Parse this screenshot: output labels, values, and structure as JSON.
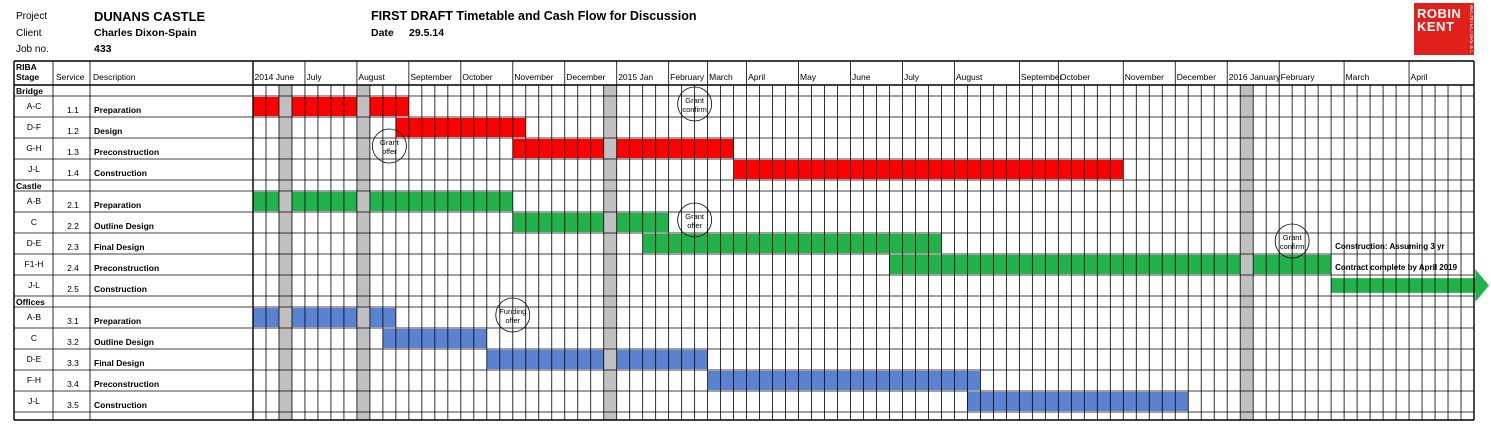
{
  "header": {
    "project_label": "Project",
    "project_value": "DUNANS CASTLE",
    "client_label": "Client",
    "client_value": "Charles Dixon-Spain",
    "job_label": "Job no.",
    "job_value": "433",
    "title": "FIRST DRAFT Timetable and Cash Flow for Discussion",
    "date_label": "Date",
    "date_value": "29.5.14"
  },
  "logo": {
    "line1": "ROBIN",
    "line2": "KENT",
    "vertical": "ARCHITECTURE & CONSERVATION",
    "color": "#e0201b"
  },
  "columns": {
    "riba": "RIBA",
    "stage": "Stage",
    "service": "Service",
    "description": "Description"
  },
  "chart_data": {
    "type": "gantt",
    "time_unit": "week",
    "start": "2014-06-02",
    "colors": {
      "Bridge": "#ff0000",
      "Castle": "#22b24c",
      "Offices": "#5b82d1",
      "grey": "#c0c0c0"
    },
    "months": [
      {
        "label": "2014 June",
        "weeks": 4
      },
      {
        "label": "July",
        "weeks": 4
      },
      {
        "label": "August",
        "weeks": 4
      },
      {
        "label": "September",
        "weeks": 4
      },
      {
        "label": "October",
        "weeks": 4
      },
      {
        "label": "November",
        "weeks": 4
      },
      {
        "label": "December",
        "weeks": 4
      },
      {
        "label": "2015 Jan",
        "weeks": 4
      },
      {
        "label": "February",
        "weeks": 3
      },
      {
        "label": "March",
        "weeks": 3
      },
      {
        "label": "April",
        "weeks": 4
      },
      {
        "label": "May",
        "weeks": 4
      },
      {
        "label": "June",
        "weeks": 4
      },
      {
        "label": "July",
        "weeks": 4
      },
      {
        "label": "August",
        "weeks": 5
      },
      {
        "label": "September",
        "weeks": 3
      },
      {
        "label": "October",
        "weeks": 5
      },
      {
        "label": "November",
        "weeks": 4
      },
      {
        "label": "December",
        "weeks": 4
      },
      {
        "label": "2016 January",
        "weeks": 4
      },
      {
        "label": "February",
        "weeks": 5
      },
      {
        "label": "March",
        "weeks": 5
      },
      {
        "label": "April",
        "weeks": 5
      }
    ],
    "grey_weeks": [
      2,
      8,
      27,
      76
    ],
    "sections": [
      {
        "name": "Bridge",
        "color": "Bridge",
        "rows": [
          {
            "stage": "A-C",
            "service": "1.1",
            "description": "Preparation",
            "start": 0,
            "end": 12
          },
          {
            "stage": "D-F",
            "service": "1.2",
            "description": "Design",
            "start": 11,
            "end": 21
          },
          {
            "stage": "G-H",
            "service": "1.3",
            "description": "Preconstruction",
            "start": 20,
            "end": 37
          },
          {
            "stage": "J-L",
            "service": "1.4",
            "description": "Construction",
            "start": 37,
            "end": 67
          }
        ]
      },
      {
        "name": "Castle",
        "color": "Castle",
        "rows": [
          {
            "stage": "A-B",
            "service": "2.1",
            "description": "Preparation",
            "start": 0,
            "end": 20
          },
          {
            "stage": "C",
            "service": "2.2",
            "description": "Outline Design",
            "start": 20,
            "end": 32
          },
          {
            "stage": "D-E",
            "service": "2.3",
            "description": "Final Design",
            "start": 30,
            "end": 53
          },
          {
            "stage": "F1-H",
            "service": "2.4",
            "description": "Preconstruction",
            "start": 49,
            "end": 83
          },
          {
            "stage": "J-L",
            "service": "2.5",
            "description": "Construction",
            "start": 83,
            "end": 95,
            "arrow": true
          }
        ]
      },
      {
        "name": "Offices",
        "color": "Offices",
        "rows": [
          {
            "stage": "A-B",
            "service": "3.1",
            "description": "Preparation",
            "start": 0,
            "end": 11
          },
          {
            "stage": "C",
            "service": "3.2",
            "description": "Outline Design",
            "start": 10,
            "end": 18
          },
          {
            "stage": "D-E",
            "service": "3.3",
            "description": "Final Design",
            "start": 18,
            "end": 35
          },
          {
            "stage": "F-H",
            "service": "3.4",
            "description": "Preconstruction",
            "start": 35,
            "end": 56
          },
          {
            "stage": "J-L",
            "service": "3.5",
            "description": "Construction",
            "start": 55,
            "end": 72
          }
        ]
      }
    ],
    "annotations": [
      {
        "lines": [
          "Grant",
          "confirm"
        ],
        "week": 34,
        "row": "1.1"
      },
      {
        "lines": [
          "Grant",
          "offer"
        ],
        "week": 10.5,
        "row": "1.3"
      },
      {
        "lines": [
          "Grant",
          "offer"
        ],
        "week": 34,
        "row": "2.2"
      },
      {
        "lines": [
          "Grant",
          "confirm"
        ],
        "week": 80,
        "row": "2.3"
      },
      {
        "lines": [
          "Funding",
          "offer"
        ],
        "week": 20,
        "row": "3.1"
      }
    ],
    "notes": [
      {
        "text": "Construction: Assuming 3 yr",
        "week": 83,
        "row": "2.3"
      },
      {
        "text": "Contract complete  by  April 2019",
        "week": 83,
        "row": "2.4"
      }
    ]
  }
}
